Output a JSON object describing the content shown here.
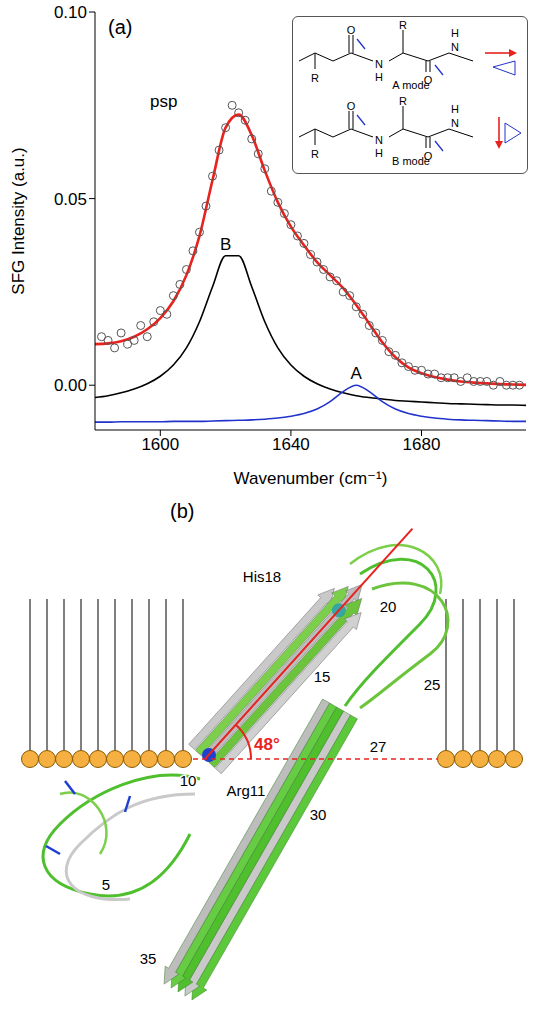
{
  "chart_data": {
    "type": "line",
    "panel_label": "(a)",
    "annotation": "psp",
    "x_label": "Wavenumber (cm⁻¹)",
    "y_label": "SFG Intensity (a.u.)",
    "xlim": [
      1580,
      1712
    ],
    "xticks": [
      1600,
      1640,
      1680
    ],
    "ylim": [
      -0.012,
      0.1
    ],
    "yticks": [
      {
        "value": 0,
        "label": "0.00"
      },
      {
        "value": 0.05,
        "label": "0.05"
      },
      {
        "value": 0.1,
        "label": "0.10"
      }
    ],
    "grid": false,
    "series": [
      {
        "type": "scatter",
        "marker": "circle",
        "color": "#555555",
        "x": [
          1582,
          1584,
          1586,
          1588,
          1590,
          1592,
          1594,
          1596,
          1598,
          1600,
          1602,
          1604,
          1606,
          1608,
          1610,
          1612,
          1614,
          1616,
          1618,
          1620,
          1622,
          1624,
          1626,
          1628,
          1630,
          1632,
          1634,
          1636,
          1638,
          1640,
          1642,
          1644,
          1646,
          1648,
          1650,
          1652,
          1654,
          1656,
          1658,
          1660,
          1662,
          1664,
          1666,
          1668,
          1670,
          1672,
          1674,
          1676,
          1678,
          1680,
          1682,
          1684,
          1686,
          1688,
          1690,
          1692,
          1694,
          1696,
          1698,
          1700,
          1702,
          1704,
          1706,
          1708,
          1710
        ],
        "values": [
          0.013,
          0.012,
          0.01,
          0.014,
          0.011,
          0.012,
          0.016,
          0.013,
          0.017,
          0.02,
          0.019,
          0.024,
          0.027,
          0.031,
          0.036,
          0.041,
          0.048,
          0.056,
          0.063,
          0.069,
          0.075,
          0.073,
          0.071,
          0.066,
          0.062,
          0.058,
          0.052,
          0.049,
          0.046,
          0.043,
          0.04,
          0.038,
          0.035,
          0.033,
          0.031,
          0.029,
          0.028,
          0.025,
          0.024,
          0.021,
          0.019,
          0.016,
          0.014,
          0.012,
          0.009,
          0.008,
          0.006,
          0.005,
          0.004,
          0.004,
          0.003,
          0.003,
          0.002,
          0.002,
          0.002,
          0.001,
          0.002,
          0.001,
          0.001,
          0.001,
          0.0,
          0.001,
          0.0,
          0.0,
          0.0
        ]
      },
      {
        "type": "line",
        "color": "#e8231f",
        "x": [
          1580,
          1584,
          1588,
          1592,
          1596,
          1600,
          1604,
          1608,
          1612,
          1616,
          1620,
          1624,
          1628,
          1632,
          1636,
          1640,
          1644,
          1648,
          1652,
          1656,
          1660,
          1664,
          1668,
          1672,
          1676,
          1680,
          1684,
          1688,
          1692,
          1696,
          1700,
          1704,
          1708,
          1712
        ],
        "values": [
          0.011,
          0.0112,
          0.0118,
          0.013,
          0.015,
          0.018,
          0.0225,
          0.0295,
          0.04,
          0.055,
          0.069,
          0.0725,
          0.067,
          0.0575,
          0.049,
          0.0425,
          0.0375,
          0.033,
          0.0295,
          0.026,
          0.0215,
          0.0165,
          0.0115,
          0.0075,
          0.0048,
          0.0032,
          0.0022,
          0.0015,
          0.001,
          0.0007,
          0.0005,
          0.0003,
          0.0002,
          0.0001
        ]
      },
      {
        "name": "B",
        "type": "line",
        "color": "#000000",
        "x": [
          1580,
          1584,
          1588,
          1592,
          1596,
          1600,
          1604,
          1608,
          1612,
          1616,
          1620,
          1624,
          1628,
          1632,
          1636,
          1640,
          1644,
          1648,
          1652,
          1656,
          1660,
          1664,
          1668,
          1672,
          1676,
          1680,
          1684,
          1688,
          1692,
          1696,
          1700,
          1704,
          1708,
          1712
        ],
        "values": [
          -0.0033,
          -0.0028,
          -0.002,
          -0.001,
          0.0004,
          0.0024,
          0.0054,
          0.01,
          0.017,
          0.0264,
          0.0347,
          0.0347,
          0.0264,
          0.017,
          0.01,
          0.0054,
          0.0024,
          0.0004,
          -0.001,
          -0.002,
          -0.0028,
          -0.0033,
          -0.0037,
          -0.0041,
          -0.0043,
          -0.0045,
          -0.0047,
          -0.0049,
          -0.005,
          -0.0051,
          -0.0052,
          -0.0053,
          -0.0053,
          -0.0054
        ]
      },
      {
        "name": "A",
        "type": "line",
        "color": "#2233cc",
        "x": [
          1580,
          1584,
          1588,
          1592,
          1596,
          1600,
          1604,
          1608,
          1612,
          1616,
          1620,
          1624,
          1628,
          1632,
          1636,
          1640,
          1644,
          1648,
          1652,
          1656,
          1660,
          1664,
          1668,
          1672,
          1676,
          1680,
          1684,
          1688,
          1692,
          1696,
          1700,
          1704,
          1708,
          1712
        ],
        "values": [
          -0.0099,
          -0.0099,
          -0.0098,
          -0.0098,
          -0.0098,
          -0.0098,
          -0.0097,
          -0.0097,
          -0.0097,
          -0.0096,
          -0.0095,
          -0.0094,
          -0.0093,
          -0.0091,
          -0.0088,
          -0.0083,
          -0.0076,
          -0.0064,
          -0.0044,
          -0.0017,
          0.0,
          -0.0017,
          -0.0044,
          -0.0064,
          -0.0076,
          -0.0083,
          -0.0088,
          -0.0091,
          -0.0093,
          -0.0094,
          -0.0095,
          -0.0096,
          -0.0097,
          -0.0097
        ]
      }
    ],
    "inset": {
      "structures": [
        {
          "label": "A mode",
          "atoms": [
            "O",
            "R",
            "H",
            "N",
            "R",
            "N",
            "H",
            "O"
          ]
        },
        {
          "label": "B mode",
          "atoms": [
            "O",
            "R",
            "H",
            "N",
            "R",
            "N",
            "H",
            "O"
          ]
        }
      ]
    }
  },
  "panel_b": {
    "panel_label": "(b)",
    "angle": {
      "value": 48,
      "label": "48°"
    },
    "labels": [
      "His18",
      "20",
      "15",
      "25",
      "27",
      "Arg11",
      "10",
      "30",
      "5",
      "35"
    ]
  }
}
